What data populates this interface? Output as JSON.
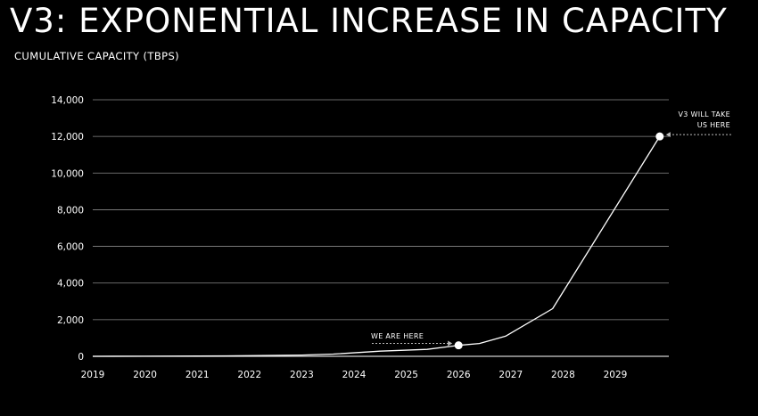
{
  "chart_data": {
    "type": "line",
    "title": "V3: EXPONENTIAL INCREASE IN CAPACITY",
    "ylabel": "CUMULATIVE CAPACITY (TBPS)",
    "xlabel": "",
    "xlim": [
      2019,
      2030
    ],
    "ylim": [
      0,
      14000
    ],
    "x_ticks": [
      "2019",
      "2020",
      "2021",
      "2022",
      "2023",
      "2024",
      "2025",
      "2026",
      "2027",
      "2028",
      "2029"
    ],
    "y_ticks": [
      "0",
      "2,000",
      "4,000",
      "6,000",
      "8,000",
      "10,000",
      "12,000",
      "14,000"
    ],
    "y_tick_values": [
      0,
      2000,
      4000,
      6000,
      8000,
      10000,
      12000,
      14000
    ],
    "grid": "horizontal",
    "series": [
      {
        "x": [
          2019.0,
          2020.0,
          2021.0,
          2022.0,
          2023.0,
          2023.6,
          2024.5,
          2025.4,
          2026.0,
          2026.4,
          2026.9,
          2027.8,
          2029.85
        ],
        "values": [
          0,
          5,
          15,
          35,
          70,
          120,
          280,
          380,
          600,
          700,
          1100,
          2600,
          12000
        ]
      }
    ],
    "highlights": [
      {
        "x": 2026.0,
        "y": 600,
        "label": "WE ARE HERE"
      },
      {
        "x": 2029.85,
        "y": 12000,
        "label": "V3 WILL TAKE US HERE"
      }
    ],
    "colors": {
      "background": "#000000",
      "line": "#ffffff",
      "grid": "#8a8a8a"
    }
  }
}
